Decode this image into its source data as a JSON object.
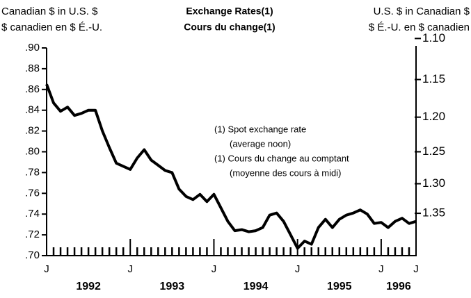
{
  "chart_data": {
    "type": "line",
    "title": [
      "Exchange Rates(1)",
      "Cours du change(1)"
    ],
    "y_label": [
      "Canadian $ in U.S. $",
      "$ canadien en $ É.-U."
    ],
    "y2_label": [
      "U.S. $ in Canadian $",
      "$ É.-U. en $ canadien"
    ],
    "note": [
      "(1) Spot exchange rate",
      "(average noon)",
      "(1) Cours du change au comptant",
      "(moyenne des cours à midi)"
    ],
    "categories": [
      "J",
      null,
      null,
      null,
      null,
      null,
      null,
      null,
      null,
      null,
      null,
      null,
      "J",
      null,
      null,
      null,
      null,
      null,
      null,
      null,
      null,
      null,
      null,
      null,
      "J",
      null,
      null,
      null,
      null,
      null,
      null,
      null,
      null,
      null,
      null,
      null,
      "J",
      null,
      null,
      null,
      null,
      null,
      null,
      null,
      null,
      null,
      null,
      null,
      "J",
      null,
      null,
      null,
      null,
      "J"
    ],
    "years": [
      "1992",
      "1993",
      "1994",
      "1995",
      "1996"
    ],
    "series": [
      {
        "name": "Exchange rate",
        "color": "#000000",
        "values": [
          0.865,
          0.847,
          0.839,
          0.843,
          0.835,
          0.837,
          0.84,
          0.84,
          0.82,
          0.804,
          0.789,
          0.786,
          0.783,
          0.794,
          0.802,
          0.792,
          0.787,
          0.782,
          0.78,
          0.764,
          0.757,
          0.754,
          0.759,
          0.752,
          0.759,
          0.746,
          0.733,
          0.724,
          0.725,
          0.723,
          0.724,
          0.727,
          0.739,
          0.741,
          0.733,
          0.72,
          0.707,
          0.714,
          0.711,
          0.727,
          0.735,
          0.727,
          0.735,
          0.739,
          0.741,
          0.744,
          0.74,
          0.731,
          0.732,
          0.727,
          0.733,
          0.736,
          0.731,
          0.733
        ]
      }
    ],
    "ylim": [
      0.7,
      0.9
    ],
    "yticks": [
      {
        "value": 0.7,
        "label": ".70"
      },
      {
        "value": 0.72,
        "label": ".72"
      },
      {
        "value": 0.74,
        "label": ".74"
      },
      {
        "value": 0.76,
        "label": ".76"
      },
      {
        "value": 0.78,
        "label": ".78"
      },
      {
        "value": 0.8,
        "label": ".80"
      },
      {
        "value": 0.82,
        "label": ".82"
      },
      {
        "value": 0.84,
        "label": ".84"
      },
      {
        "value": 0.86,
        "label": ".86"
      },
      {
        "value": 0.88,
        "label": ".88"
      },
      {
        "value": 0.9,
        "label": ".90"
      }
    ],
    "y2scale": "reciprocal",
    "y2ticks": [
      {
        "value": 1.1,
        "label": "1.10"
      },
      1.15,
      {
        "value": 1.2,
        "label": "1.20"
      },
      1.25,
      {
        "value": 1.3,
        "label": "1.30"
      },
      1.35
    ],
    "grid": false
  }
}
